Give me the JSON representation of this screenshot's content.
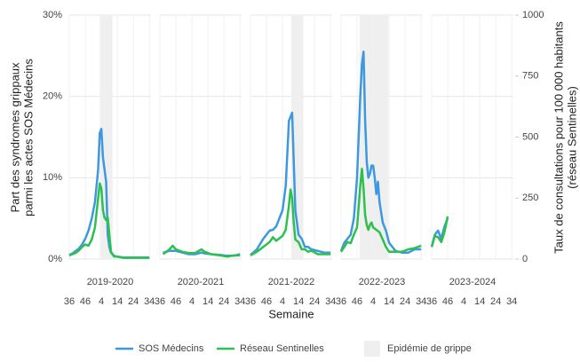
{
  "chart_data": {
    "type": "line",
    "y_label": [
      "Part des syndromes grippaux",
      "parmi les actes SOS Médecins"
    ],
    "y2_label": [
      "Taux de consultations pour 100 000 habitants",
      "(réseau Sentinelles)"
    ],
    "x_label": "Semaine",
    "xlim": [
      0,
      51
    ],
    "xticks": [
      {
        "value": 0,
        "label": "36"
      },
      {
        "value": 10,
        "label": "46"
      },
      {
        "value": 20,
        "label": "4"
      },
      {
        "value": 30,
        "label": "14"
      },
      {
        "value": 40,
        "label": "24"
      },
      {
        "value": 50,
        "label": "34"
      }
    ],
    "ylim": [
      0,
      30
    ],
    "yticks": [
      {
        "value": 0,
        "label": "0%"
      },
      {
        "value": 10,
        "label": "10%"
      },
      {
        "value": 20,
        "label": "20%"
      },
      {
        "value": 30,
        "label": "30%"
      }
    ],
    "y2lim": [
      0,
      1000
    ],
    "y2ticks": [
      0,
      250,
      500,
      750,
      1000
    ],
    "grid": true,
    "series": [
      {
        "name": "SOS Médecins",
        "color": "#3e98e0"
      },
      {
        "name": "Réseau Sentinelles",
        "color": "#2ec04f",
        "axis": "y2"
      }
    ],
    "epidemic": {
      "name": "Epidémie de grippe",
      "color": "#efefef"
    },
    "facets": [
      {
        "title": "2019-2020",
        "epidemic": [
          19,
          27
        ],
        "x": [
          0,
          2,
          4,
          6,
          8,
          10,
          12,
          14,
          16,
          18,
          19,
          20,
          21,
          22,
          23,
          24,
          25,
          26,
          28,
          30,
          34,
          38,
          42,
          46,
          50
        ],
        "series": [
          {
            "values": [
              0.5,
              0.7,
              1,
              1.3,
              1.8,
              2.5,
              3.5,
              5,
              7,
              11,
              15.5,
              16,
              12.5,
              11,
              9.5,
              3,
              1.5,
              0.8,
              0.4,
              0.3,
              0.2,
              0.2,
              0.2,
              0.2,
              0.2
            ]
          },
          {
            "values": [
              15,
              20,
              25,
              35,
              50,
              60,
              55,
              80,
              130,
              250,
              310,
              290,
              200,
              170,
              160,
              170,
              100,
              30,
              10,
              10,
              5,
              5,
              5,
              5,
              5
            ]
          }
        ]
      },
      {
        "title": "2020-2021",
        "x": [
          2,
          6,
          8,
          10,
          14,
          18,
          22,
          26,
          28,
          32,
          38,
          42,
          46,
          50
        ],
        "series": [
          {
            "values": [
              0.8,
              1,
              1,
              1,
              0.8,
              0.6,
              0.6,
              0.8,
              0.7,
              0.6,
              0.5,
              0.4,
              0.4,
              0.6
            ]
          },
          {
            "values": [
              20,
              40,
              55,
              40,
              30,
              25,
              25,
              40,
              30,
              20,
              15,
              10,
              15,
              15
            ]
          }
        ]
      },
      {
        "title": "2021-2022",
        "epidemic": [
          25.5,
          33
        ],
        "x": [
          0,
          4,
          8,
          12,
          14,
          16,
          18,
          20,
          22,
          24,
          25,
          26,
          27,
          28,
          30,
          32,
          34,
          36,
          38,
          42,
          46,
          50
        ],
        "series": [
          {
            "values": [
              0.5,
              1.2,
              2.5,
              3.5,
              3.6,
              4,
              5,
              6,
              9,
              17,
              17.5,
              18,
              12,
              6,
              3,
              2.5,
              1.5,
              1.5,
              1.2,
              1,
              0.8,
              0.8
            ]
          },
          {
            "values": [
              15,
              30,
              50,
              70,
              90,
              75,
              85,
              95,
              120,
              220,
              285,
              250,
              150,
              80,
              70,
              40,
              40,
              30,
              35,
              20,
              20,
              20
            ]
          }
        ]
      },
      {
        "title": "2022-2023",
        "epidemic": [
          11.5,
          29.5
        ],
        "x": [
          0,
          2,
          4,
          6,
          8,
          10,
          12,
          13,
          14,
          15,
          16,
          17,
          18,
          19,
          20,
          21,
          22,
          23,
          24,
          26,
          28,
          30,
          34,
          38,
          42,
          46,
          50
        ],
        "series": [
          {
            "values": [
              1,
              2,
              2.5,
              3,
              5,
              10,
              20,
              24,
              25.5,
              17,
              12,
              10,
              10.5,
              11.5,
              11.5,
              10,
              8,
              9.5,
              7,
              4.5,
              3.5,
              2,
              1,
              0.8,
              0.8,
              1.2,
              1.2
            ]
          },
          {
            "values": [
              30,
              50,
              70,
              65,
              100,
              130,
              300,
              370,
              290,
              180,
              140,
              120,
              140,
              150,
              130,
              125,
              120,
              115,
              110,
              80,
              50,
              30,
              30,
              30,
              40,
              45,
              55
            ]
          }
        ]
      },
      {
        "title": "2023-2024",
        "x": [
          0,
          2,
          4,
          6,
          8,
          10
        ],
        "series": [
          {
            "values": [
              1.5,
              3,
              3.5,
              2.5,
              4,
              5
            ]
          },
          {
            "values": [
              50,
              95,
              90,
              70,
              110,
              175
            ]
          }
        ]
      }
    ]
  }
}
